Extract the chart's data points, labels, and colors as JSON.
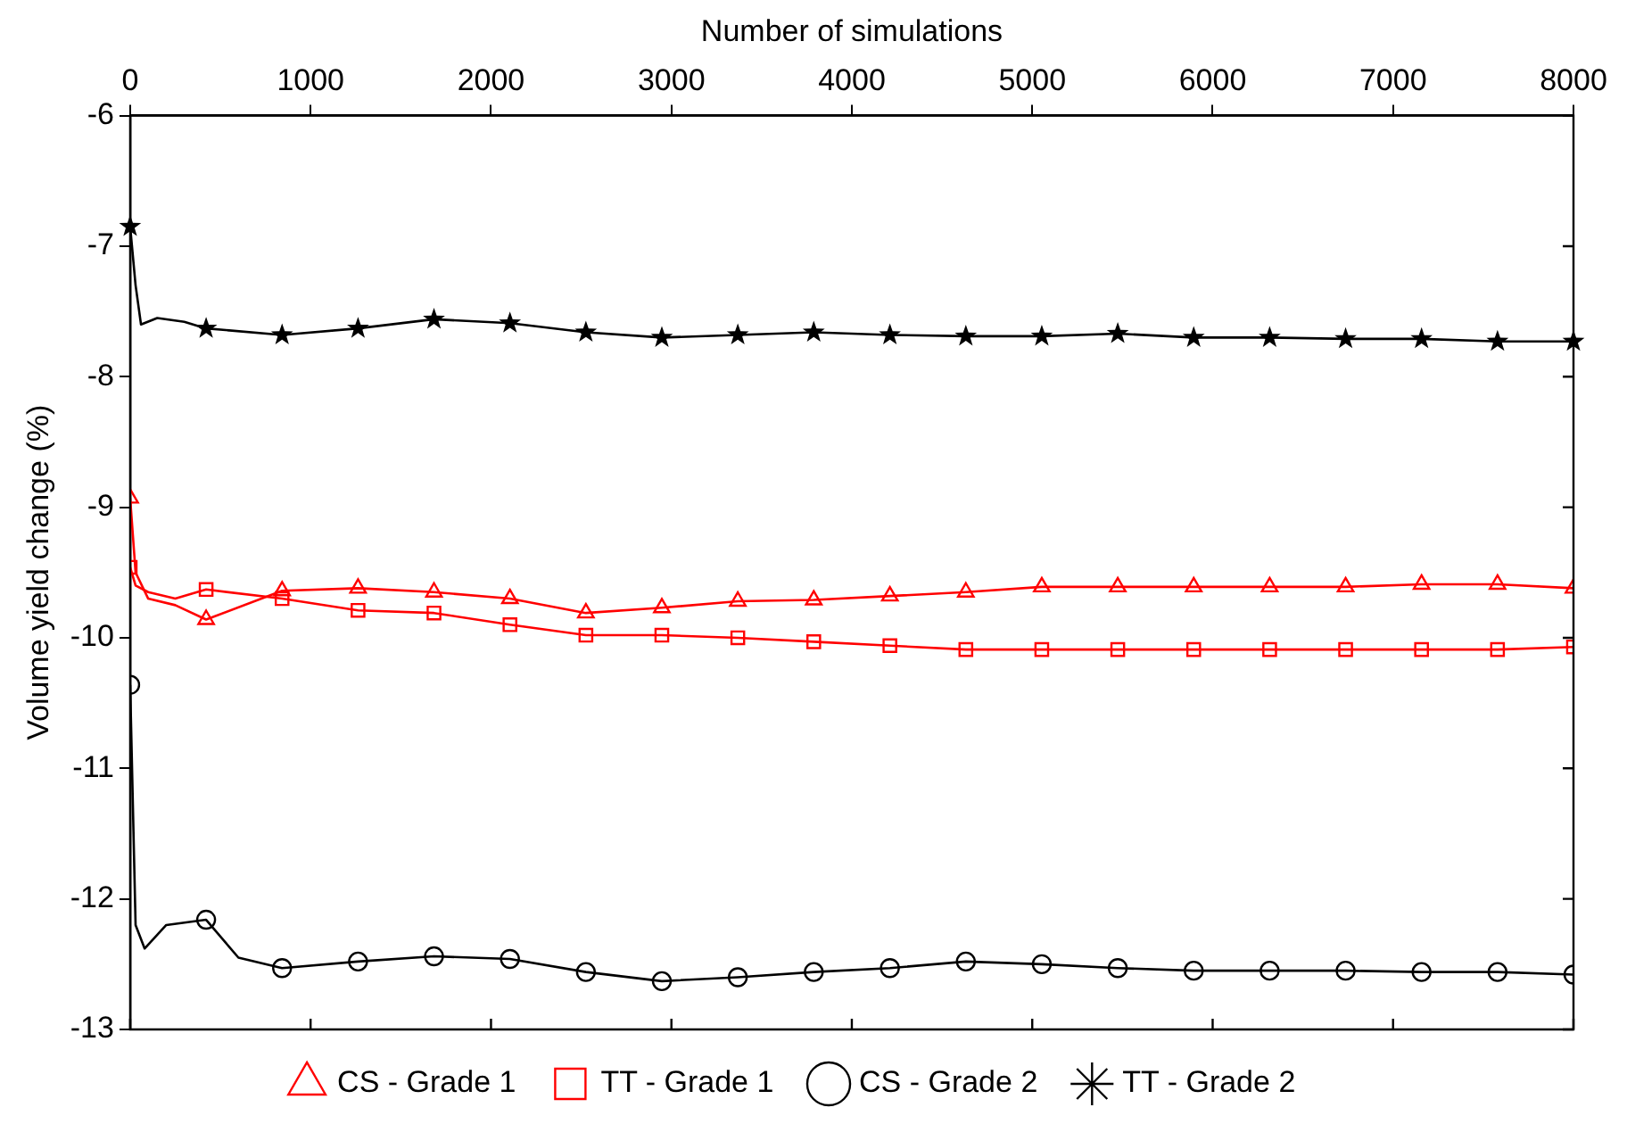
{
  "chart_data": {
    "type": "line",
    "xlabel": "Number of simulations",
    "ylabel": "Volume yield change (%)",
    "xlim": [
      0,
      8000
    ],
    "xticks": [
      0,
      1000,
      2000,
      3000,
      4000,
      5000,
      6000,
      7000,
      8000
    ],
    "ylim": [
      -13,
      -6
    ],
    "yticks": [
      -13,
      -12,
      -11,
      -10,
      -9,
      -8,
      -7,
      -6
    ],
    "grid": false,
    "legend": "bottom",
    "line_style": "solid",
    "series": [
      {
        "name": "CS - Grade 1",
        "color": "#ff0000",
        "marker": "triangle",
        "x": [
          0,
          30,
          100,
          250,
          421,
          842,
          1263,
          1684,
          2105,
          2526,
          2947,
          3368,
          3789,
          4211,
          4632,
          5053,
          5474,
          5895,
          6316,
          6737,
          7158,
          7579,
          8000
        ],
        "values": [
          -8.93,
          -9.5,
          -9.7,
          -9.75,
          -9.86,
          -9.64,
          -9.62,
          -9.65,
          -9.7,
          -9.81,
          -9.77,
          -9.72,
          -9.71,
          -9.68,
          -9.65,
          -9.61,
          -9.61,
          -9.61,
          -9.61,
          -9.61,
          -9.59,
          -9.59,
          -9.62
        ]
      },
      {
        "name": "TT - Grade 1",
        "color": "#ff0000",
        "marker": "square",
        "x": [
          0,
          30,
          100,
          250,
          421,
          842,
          1263,
          1684,
          2105,
          2526,
          2947,
          3368,
          3789,
          4211,
          4632,
          5053,
          5474,
          5895,
          6316,
          6737,
          7158,
          7579,
          8000
        ],
        "values": [
          -9.46,
          -9.6,
          -9.65,
          -9.7,
          -9.63,
          -9.7,
          -9.79,
          -9.81,
          -9.9,
          -9.98,
          -9.98,
          -10.0,
          -10.03,
          -10.06,
          -10.09,
          -10.09,
          -10.09,
          -10.09,
          -10.09,
          -10.09,
          -10.09,
          -10.09,
          -10.07
        ]
      },
      {
        "name": "CS - Grade 2",
        "color": "#000000",
        "marker": "circle",
        "x": [
          0,
          30,
          80,
          200,
          421,
          600,
          842,
          1263,
          1684,
          2105,
          2526,
          2947,
          3368,
          3789,
          4211,
          4632,
          5053,
          5474,
          5895,
          6316,
          6737,
          7158,
          7579,
          8000
        ],
        "values": [
          -10.36,
          -12.2,
          -12.38,
          -12.2,
          -12.16,
          -12.45,
          -12.53,
          -12.48,
          -12.44,
          -12.46,
          -12.56,
          -12.63,
          -12.6,
          -12.56,
          -12.53,
          -12.48,
          -12.5,
          -12.53,
          -12.55,
          -12.55,
          -12.55,
          -12.56,
          -12.56,
          -12.58
        ]
      },
      {
        "name": "TT - Grade 2",
        "color": "#000000",
        "marker": "star",
        "x": [
          0,
          30,
          60,
          150,
          300,
          421,
          842,
          1263,
          1684,
          2105,
          2526,
          2947,
          3368,
          3789,
          4211,
          4632,
          5053,
          5474,
          5895,
          6316,
          6737,
          7158,
          7579,
          8000
        ],
        "values": [
          -6.85,
          -7.3,
          -7.6,
          -7.55,
          -7.58,
          -7.63,
          -7.68,
          -7.63,
          -7.56,
          -7.59,
          -7.66,
          -7.7,
          -7.68,
          -7.66,
          -7.68,
          -7.69,
          -7.69,
          -7.67,
          -7.7,
          -7.7,
          -7.71,
          -7.71,
          -7.73,
          -7.73
        ]
      }
    ]
  }
}
